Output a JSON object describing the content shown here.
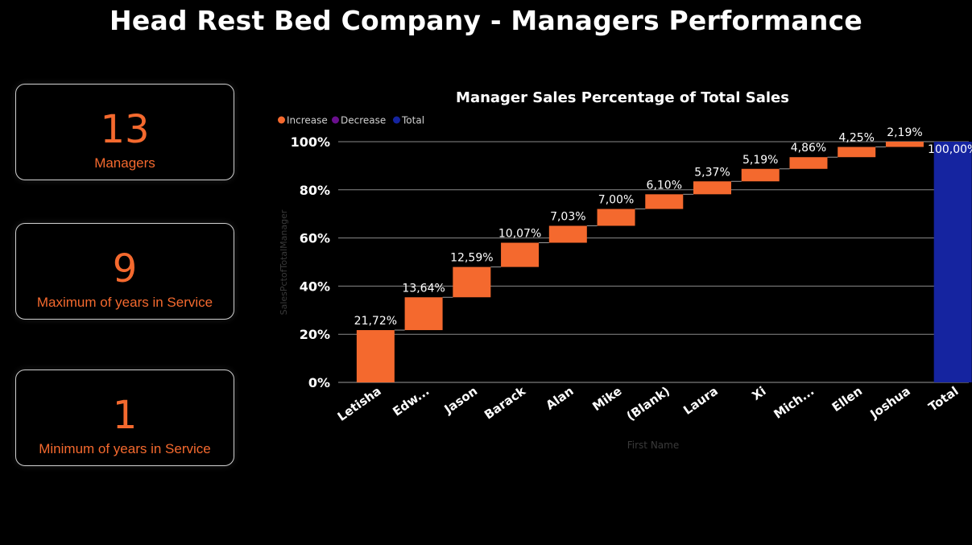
{
  "header": {
    "title": "Head Rest Bed Company - Managers Performance"
  },
  "cards": [
    {
      "value": "13",
      "label": "Managers"
    },
    {
      "value": "9",
      "label": "Maximum of years in Service"
    },
    {
      "value": "1",
      "label": "Minimum of years in Service"
    }
  ],
  "chart_data": {
    "type": "waterfall",
    "title": "Manager Sales Percentage of Total Sales",
    "xlabel": "First Name",
    "ylabel": "SalesPctofTotalManager",
    "ylim": [
      0,
      100
    ],
    "yticks": [
      0,
      20,
      40,
      60,
      80,
      100
    ],
    "ytick_labels": [
      "0%",
      "20%",
      "40%",
      "60%",
      "80%",
      "100%"
    ],
    "grid": true,
    "legend": {
      "position": "top-left",
      "items": [
        {
          "name": "Increase",
          "color": "#f4692e"
        },
        {
          "name": "Decrease",
          "color": "#6a0f8e"
        },
        {
          "name": "Total",
          "color": "#1524a0"
        }
      ]
    },
    "categories": [
      "Letisha",
      "Edw...",
      "Jason",
      "Barack",
      "Alan",
      "Mike",
      "(Blank)",
      "Laura",
      "Xi",
      "Mich...",
      "Ellen",
      "Joshua",
      "Total"
    ],
    "values": [
      21.72,
      13.64,
      12.59,
      10.07,
      7.03,
      7.0,
      6.1,
      5.37,
      5.19,
      4.86,
      4.25,
      2.19,
      100.0
    ],
    "value_labels": [
      "21,72%",
      "13,64%",
      "12,59%",
      "10,07%",
      "7,03%",
      "7,00%",
      "6,10%",
      "5,37%",
      "5,19%",
      "4,86%",
      "4,25%",
      "2,19%",
      "100,00%"
    ],
    "kinds": [
      "increase",
      "increase",
      "increase",
      "increase",
      "increase",
      "increase",
      "increase",
      "increase",
      "increase",
      "increase",
      "increase",
      "increase",
      "total"
    ]
  }
}
